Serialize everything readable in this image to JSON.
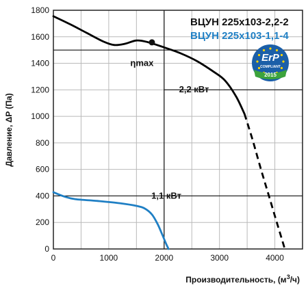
{
  "chart_data": {
    "type": "line",
    "xlabel": "Производительность, (м",
    "xlabel_sup": "3",
    "xlabel_end": "/ч)",
    "ylabel": "Давление, ΔP (Па)",
    "xlim": [
      0,
      4500
    ],
    "ylim": [
      0,
      1800
    ],
    "x_ticks": [
      0,
      1000,
      2000,
      3000,
      4000
    ],
    "y_ticks": [
      0,
      200,
      400,
      600,
      800,
      1000,
      1200,
      1400,
      1600,
      1800
    ],
    "x_tick_labels": [
      "0",
      "1000",
      "2000",
      "3000",
      "4000"
    ],
    "y_tick_labels": [
      "0",
      "200",
      "400",
      "600",
      "800",
      "1000",
      "1200",
      "1400",
      "1600",
      "1800"
    ],
    "grid": true,
    "legend_position": "top-right",
    "series": [
      {
        "name": "ВЦУН 225х103-2,2-2",
        "color": "#000000",
        "points": [
          [
            0,
            1755
          ],
          [
            300,
            1695
          ],
          [
            600,
            1630
          ],
          [
            900,
            1565
          ],
          [
            1100,
            1538
          ],
          [
            1300,
            1548
          ],
          [
            1500,
            1572
          ],
          [
            1700,
            1560
          ],
          [
            2000,
            1520
          ],
          [
            2300,
            1475
          ],
          [
            2600,
            1415
          ],
          [
            2900,
            1335
          ],
          [
            3100,
            1270
          ],
          [
            3300,
            1150
          ],
          [
            3450,
            1020
          ]
        ],
        "dashed_points": [
          [
            3450,
            1020
          ],
          [
            3600,
            820
          ],
          [
            3750,
            600
          ],
          [
            3900,
            390
          ],
          [
            4050,
            180
          ],
          [
            4180,
            0
          ]
        ]
      },
      {
        "name": "ВЦУН 225х103-1,1-4",
        "color": "#1f7fc4",
        "points": [
          [
            0,
            428
          ],
          [
            200,
            395
          ],
          [
            400,
            375
          ],
          [
            800,
            362
          ],
          [
            1200,
            345
          ],
          [
            1500,
            325
          ],
          [
            1650,
            305
          ],
          [
            1780,
            260
          ],
          [
            1880,
            190
          ],
          [
            1960,
            115
          ],
          [
            2030,
            45
          ],
          [
            2080,
            0
          ]
        ]
      }
    ],
    "markers": [
      {
        "x": 1780,
        "y": 1558,
        "label": "ηmax"
      }
    ],
    "reference_lines": [
      {
        "y": 1500,
        "x_from": 0,
        "x_to": 4500
      },
      {
        "y": 1200,
        "x_from": 2000,
        "x_to": 4500
      },
      {
        "y": 400,
        "x_from": 0,
        "x_to": 4500
      },
      {
        "x": 2000,
        "y_from": 0,
        "y_to": 1800
      }
    ],
    "annotations": [
      {
        "text": "ηmax",
        "x": 1390,
        "y": 1380
      },
      {
        "text": "2,2 кВт",
        "x": 2270,
        "y": 1180
      },
      {
        "text": "1,1 кВт",
        "x": 1770,
        "y": 380
      }
    ]
  },
  "badge": {
    "title": "ErP",
    "line1": "COMPLIANT",
    "year": "2015",
    "color_bg": "#1b5fa8",
    "color_ribbon": "#3ca33c",
    "color_stars": "#ffd400"
  }
}
